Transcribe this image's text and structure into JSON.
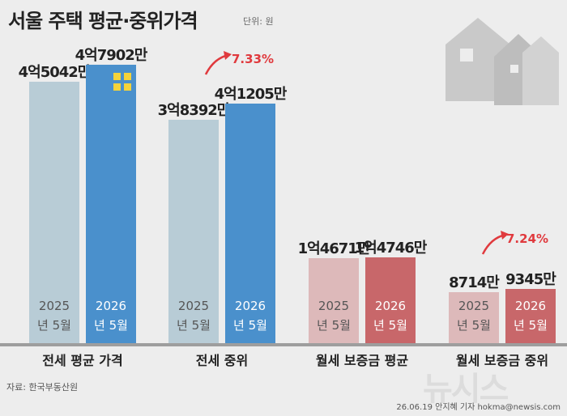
{
  "chart_data": {
    "type": "bar",
    "title": "서울 주택 평균·중위가격",
    "subtitle": "단위: 원",
    "categories": [
      "전세 평균 가격",
      "전세 중위",
      "월세 보증금 평균",
      "월세 보증금 중위"
    ],
    "series": [
      {
        "name": "2025년 5월",
        "colors": [
          "#b8ccd6",
          "#b8ccd6",
          "#ddb9ba",
          "#ddb9ba"
        ],
        "text_color": "#555555",
        "values": [
          45042,
          38392,
          14671,
          8714
        ],
        "value_labels": [
          "4억5042만",
          "3억8392만",
          "1억4671만",
          "8714만"
        ]
      },
      {
        "name": "2026년 5월",
        "colors": [
          "#4a90cc",
          "#4a90cc",
          "#c8676a",
          "#c8676a"
        ],
        "text_color": "#ffffff",
        "values": [
          47902,
          41205,
          14746,
          9345
        ],
        "value_labels": [
          "4억7902만",
          "4억1205만",
          "1억4746만",
          "9345만"
        ]
      }
    ],
    "annotations": [
      "7.33%",
      "7.24%"
    ],
    "source": "자료: 한국부동산원",
    "credit": "26.06.19 안지혜 기자 hokma@newsis.com",
    "watermark": "뉴시스"
  }
}
